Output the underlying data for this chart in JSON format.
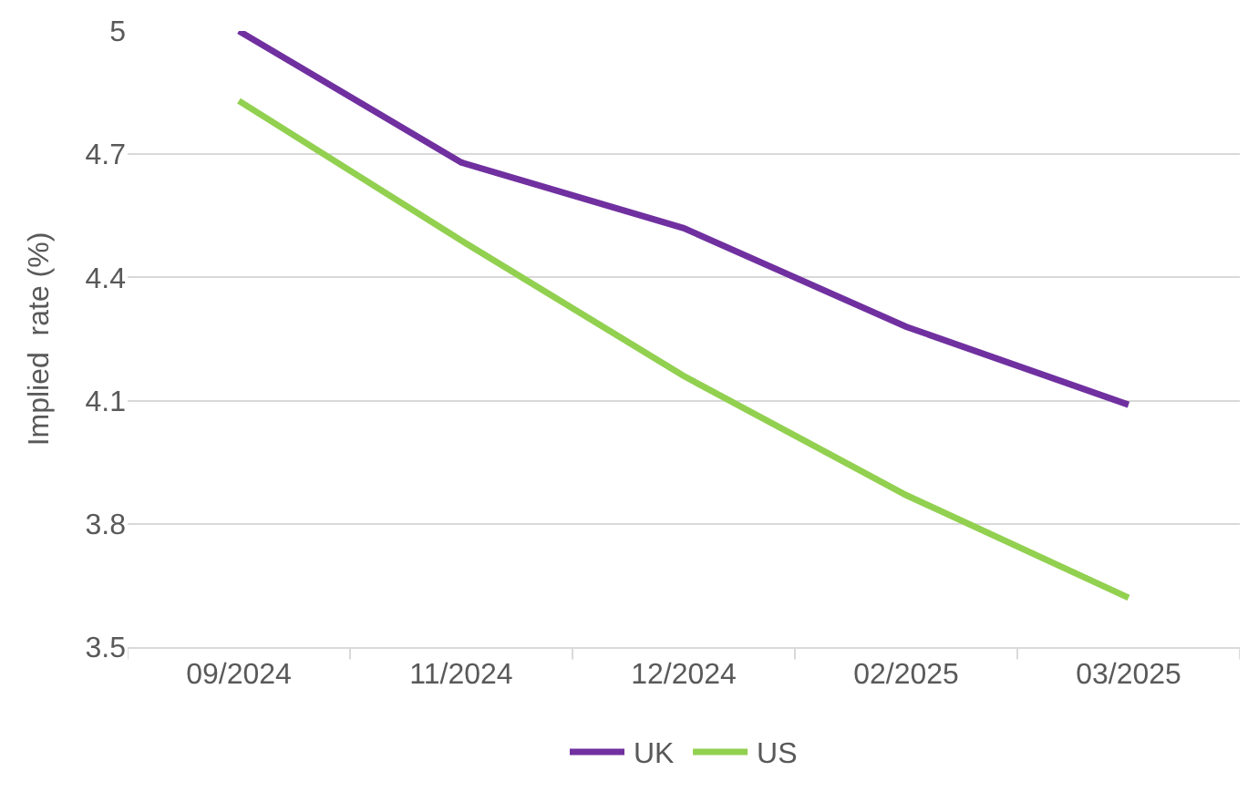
{
  "chart_data": {
    "type": "line",
    "ylabel": "Implied  rate (%)",
    "categories": [
      "09/2024",
      "11/2024",
      "12/2024",
      "02/2025",
      "03/2025"
    ],
    "series": [
      {
        "name": "UK",
        "color": "#7030a0",
        "values": [
          5.0,
          4.68,
          4.52,
          4.28,
          4.09
        ]
      },
      {
        "name": "US",
        "color": "#92d050",
        "values": [
          4.83,
          4.49,
          4.16,
          3.87,
          3.62
        ]
      }
    ],
    "ylim": [
      3.5,
      5
    ],
    "yticks": [
      3.5,
      3.8,
      4.1,
      4.4,
      4.7,
      5
    ],
    "grid": "y",
    "legend": "bottom",
    "marker": "none",
    "line_style": "solid"
  }
}
